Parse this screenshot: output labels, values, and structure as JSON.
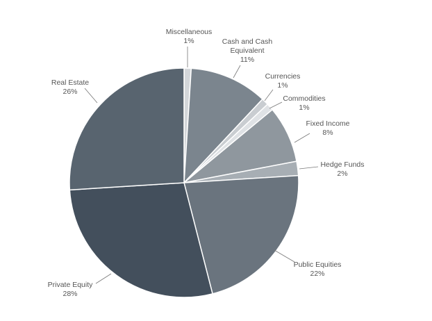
{
  "chart_data": {
    "type": "pie",
    "categories": [
      "Miscellaneous",
      "Cash and Cash Equivalent",
      "Currencies",
      "Commodities",
      "Fixed Income",
      "Hedge Funds",
      "Public Equities",
      "Private Equity",
      "Real Estate"
    ],
    "values": [
      1,
      11,
      1,
      1,
      8,
      2,
      22,
      28,
      26
    ],
    "value_labels": [
      "1%",
      "11%",
      "1%",
      "1%",
      "8%",
      "2%",
      "22%",
      "28%",
      "26%"
    ],
    "colors": [
      "#d3d6d9",
      "#7b858e",
      "#c9cdd1",
      "#dfe2e5",
      "#8f979e",
      "#a7aeb4",
      "#6a747e",
      "#434f5c",
      "#58646f"
    ]
  }
}
